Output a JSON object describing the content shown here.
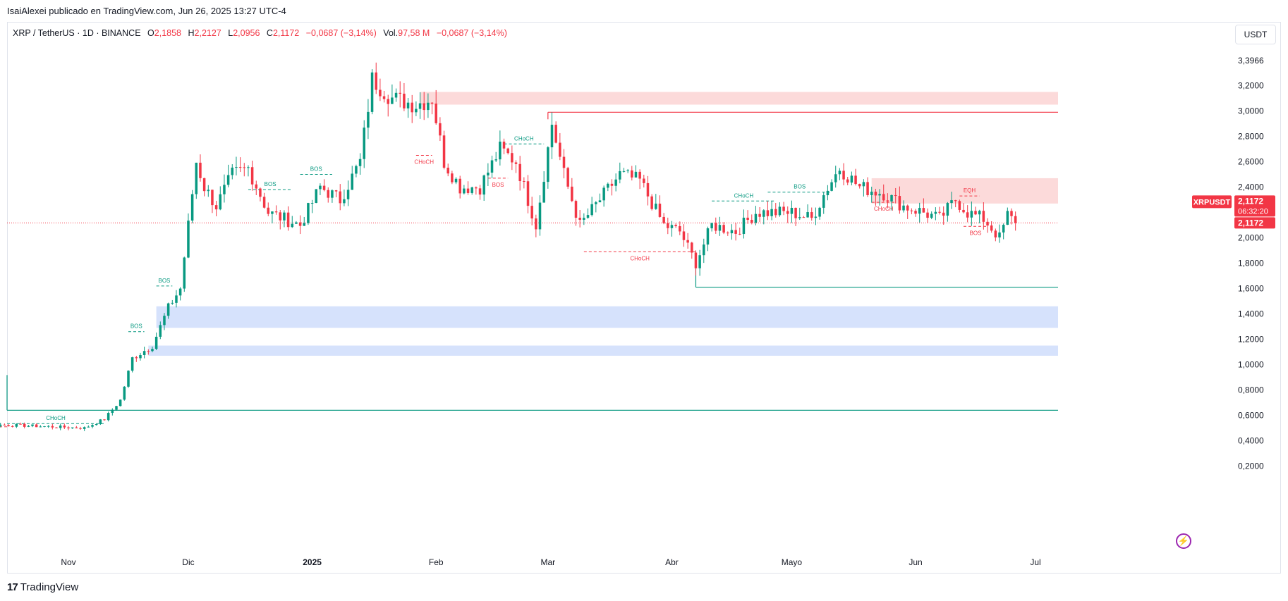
{
  "header": {
    "text": "IsaiAlexei publicado en TradingView.com, Jun 26, 2025 13:27 UTC-4"
  },
  "legend": {
    "symbol": "XRP / TetherUS · 1D · BINANCE",
    "o_label": "O",
    "o_value": "2,1858",
    "h_label": "H",
    "h_value": "2,2127",
    "l_label": "L",
    "l_value": "2,0956",
    "c_label": "C",
    "c_value": "2,1172",
    "change": "−0,0687 (−3,14%)",
    "vol_label": "Vol.",
    "vol_value": "97,58 M",
    "vol_change": "−0,0687 (−3,14%)"
  },
  "currency_button": "USDT",
  "price_badge": {
    "symbol": "XRPUSDT",
    "price": "2,1172",
    "countdown": "06:32:20",
    "price2": "2,1172"
  },
  "footer": {
    "logo": "17",
    "text": "TradingView"
  },
  "colors": {
    "up": "#089981",
    "down": "#f23645",
    "supply_zone": "#fcdada",
    "demand_zone": "#d6e2fc",
    "bos_up": "#089981",
    "bos_down": "#f23645"
  },
  "chart_data": {
    "type": "candlestick",
    "y_ticks": [
      "3,3966",
      "3,2000",
      "3,0000",
      "2,8000",
      "2,6000",
      "2,4000",
      "2,2000",
      "2,0000",
      "1,8000",
      "1,6000",
      "1,4000",
      "1,2000",
      "1,0000",
      "0,8000",
      "0,6000",
      "0,4000",
      "0,2000"
    ],
    "x_ticks": [
      {
        "label": "Nov",
        "date": "2024-11-01"
      },
      {
        "label": "Dic",
        "date": "2024-12-01"
      },
      {
        "label": "2025",
        "date": "2025-01-01"
      },
      {
        "label": "Feb",
        "date": "2025-02-01"
      },
      {
        "label": "Mar",
        "date": "2025-03-01"
      },
      {
        "label": "Abr",
        "date": "2025-04-01"
      },
      {
        "label": "Mayo",
        "date": "2025-05-01"
      },
      {
        "label": "Jun",
        "date": "2025-06-01"
      },
      {
        "label": "Jul",
        "date": "2025-07-01"
      }
    ],
    "y_range": [
      0.15,
      3.45
    ],
    "current_price": 2.1172,
    "supply_zones": [
      {
        "y_top": 3.15,
        "y_bottom": 3.05,
        "start": "2025-01-28",
        "end": "2025-07-03"
      },
      {
        "y_top": 2.47,
        "y_bottom": 2.27,
        "start": "2025-05-21",
        "end": "2025-07-03"
      }
    ],
    "demand_zones": [
      {
        "y_top": 1.46,
        "y_bottom": 1.29,
        "start": "2024-11-23",
        "end": "2025-07-03"
      },
      {
        "y_top": 1.15,
        "y_bottom": 1.07,
        "start": "2024-11-21",
        "end": "2025-07-03"
      }
    ],
    "levels": [
      {
        "y": 2.99,
        "start": "2025-03-01",
        "end": "2025-07-03",
        "color": "down"
      },
      {
        "y": 1.61,
        "start": "2025-04-07",
        "end": "2025-07-03",
        "color": "up"
      },
      {
        "y": 0.64,
        "start": "2024-10-01",
        "end": "2024-11-11",
        "color": "up"
      }
    ],
    "structure_labels": [
      {
        "text": "CHoCH",
        "x1": "2024-10-01",
        "x2": "2024-11-10",
        "y": 0.535,
        "color": "up",
        "dashed": true
      },
      {
        "text": "CHoCH",
        "x1": "2024-09-28",
        "x2": "2024-10-05",
        "y": 0.51,
        "color": "down",
        "dashed": true,
        "below": true
      },
      {
        "text": "BOS",
        "x1": "2024-11-16",
        "x2": "2024-11-20",
        "y": 1.26,
        "color": "up",
        "dashed": true
      },
      {
        "text": "BOS",
        "x1": "2024-11-23",
        "x2": "2024-11-27",
        "y": 1.62,
        "color": "up",
        "dashed": true
      },
      {
        "text": "BOS",
        "x1": "2024-12-16",
        "x2": "2024-12-27",
        "y": 2.38,
        "color": "up",
        "dashed": true
      },
      {
        "text": "BOS",
        "x1": "2024-12-29",
        "x2": "2025-01-06",
        "y": 2.5,
        "color": "up",
        "dashed": true
      },
      {
        "text": "CHoCH",
        "x1": "2025-01-27",
        "x2": "2025-01-31",
        "y": 2.65,
        "color": "down",
        "dashed": true,
        "below": true
      },
      {
        "text": "BOS",
        "x1": "2025-02-14",
        "x2": "2025-02-19",
        "y": 2.47,
        "color": "down",
        "dashed": true,
        "below": true
      },
      {
        "text": "CHoCH",
        "x1": "2025-02-18",
        "x2": "2025-02-28",
        "y": 2.74,
        "color": "up",
        "dashed": true
      },
      {
        "text": "CHoCH",
        "x1": "2025-03-10",
        "x2": "2025-04-07",
        "y": 1.89,
        "color": "down",
        "dashed": true,
        "below": true
      },
      {
        "text": "CHoCH",
        "x1": "2025-04-11",
        "x2": "2025-04-27",
        "y": 2.29,
        "color": "up",
        "dashed": true
      },
      {
        "text": "BOS",
        "x1": "2025-04-25",
        "x2": "2025-05-11",
        "y": 2.36,
        "color": "up",
        "dashed": true
      },
      {
        "text": "CHoCH",
        "x1": "2025-05-21",
        "x2": "2025-05-27",
        "y": 2.28,
        "color": "down",
        "dashed": true,
        "below": true
      },
      {
        "text": "EQH",
        "x1": "2025-06-12",
        "x2": "2025-06-17",
        "y": 2.33,
        "color": "down",
        "dashed": true
      },
      {
        "text": "BOS",
        "x1": "2025-06-13",
        "x2": "2025-06-19",
        "y": 2.09,
        "color": "down",
        "dashed": true,
        "below": true
      }
    ],
    "anchors": [
      {
        "date": "2024-09-27",
        "price": 0.54
      },
      {
        "date": "2024-10-09",
        "price": 0.53
      },
      {
        "date": "2024-10-20",
        "price": 0.52
      },
      {
        "date": "2024-11-05",
        "price": 0.5
      },
      {
        "date": "2024-11-10",
        "price": 0.57
      },
      {
        "date": "2024-11-14",
        "price": 0.72
      },
      {
        "date": "2024-11-17",
        "price": 1.05
      },
      {
        "date": "2024-11-22",
        "price": 1.15
      },
      {
        "date": "2024-11-26",
        "price": 1.45
      },
      {
        "date": "2024-11-29",
        "price": 1.6
      },
      {
        "date": "2024-12-03",
        "price": 2.6
      },
      {
        "date": "2024-12-05",
        "price": 2.4
      },
      {
        "date": "2024-12-08",
        "price": 2.25
      },
      {
        "date": "2024-12-12",
        "price": 2.5
      },
      {
        "date": "2024-12-16",
        "price": 2.55
      },
      {
        "date": "2024-12-21",
        "price": 2.2
      },
      {
        "date": "2024-12-29",
        "price": 2.1
      },
      {
        "date": "2025-01-03",
        "price": 2.4
      },
      {
        "date": "2025-01-08",
        "price": 2.3
      },
      {
        "date": "2025-01-13",
        "price": 2.6
      },
      {
        "date": "2025-01-16",
        "price": 3.25
      },
      {
        "date": "2025-01-21",
        "price": 3.1
      },
      {
        "date": "2025-01-27",
        "price": 3.05
      },
      {
        "date": "2025-01-31",
        "price": 3.1
      },
      {
        "date": "2025-02-03",
        "price": 2.6
      },
      {
        "date": "2025-02-07",
        "price": 2.4
      },
      {
        "date": "2025-02-12",
        "price": 2.4
      },
      {
        "date": "2025-02-17",
        "price": 2.7
      },
      {
        "date": "2025-02-21",
        "price": 2.6
      },
      {
        "date": "2025-02-26",
        "price": 2.1
      },
      {
        "date": "2025-03-02",
        "price": 2.9
      },
      {
        "date": "2025-03-05",
        "price": 2.5
      },
      {
        "date": "2025-03-09",
        "price": 2.1
      },
      {
        "date": "2025-03-14",
        "price": 2.3
      },
      {
        "date": "2025-03-19",
        "price": 2.5
      },
      {
        "date": "2025-03-24",
        "price": 2.45
      },
      {
        "date": "2025-03-30",
        "price": 2.1
      },
      {
        "date": "2025-04-03",
        "price": 2.05
      },
      {
        "date": "2025-04-07",
        "price": 1.8
      },
      {
        "date": "2025-04-11",
        "price": 2.1
      },
      {
        "date": "2025-04-17",
        "price": 2.05
      },
      {
        "date": "2025-04-22",
        "price": 2.2
      },
      {
        "date": "2025-04-26",
        "price": 2.2
      },
      {
        "date": "2025-05-01",
        "price": 2.2
      },
      {
        "date": "2025-05-06",
        "price": 2.15
      },
      {
        "date": "2025-05-10",
        "price": 2.4
      },
      {
        "date": "2025-05-13",
        "price": 2.55
      },
      {
        "date": "2025-05-18",
        "price": 2.4
      },
      {
        "date": "2025-05-24",
        "price": 2.35
      },
      {
        "date": "2025-05-29",
        "price": 2.25
      },
      {
        "date": "2025-06-03",
        "price": 2.2
      },
      {
        "date": "2025-06-07",
        "price": 2.15
      },
      {
        "date": "2025-06-11",
        "price": 2.3
      },
      {
        "date": "2025-06-14",
        "price": 2.2
      },
      {
        "date": "2025-06-18",
        "price": 2.15
      },
      {
        "date": "2025-06-22",
        "price": 2.0
      },
      {
        "date": "2025-06-24",
        "price": 2.18
      },
      {
        "date": "2025-06-26",
        "price": 2.1172
      }
    ]
  }
}
